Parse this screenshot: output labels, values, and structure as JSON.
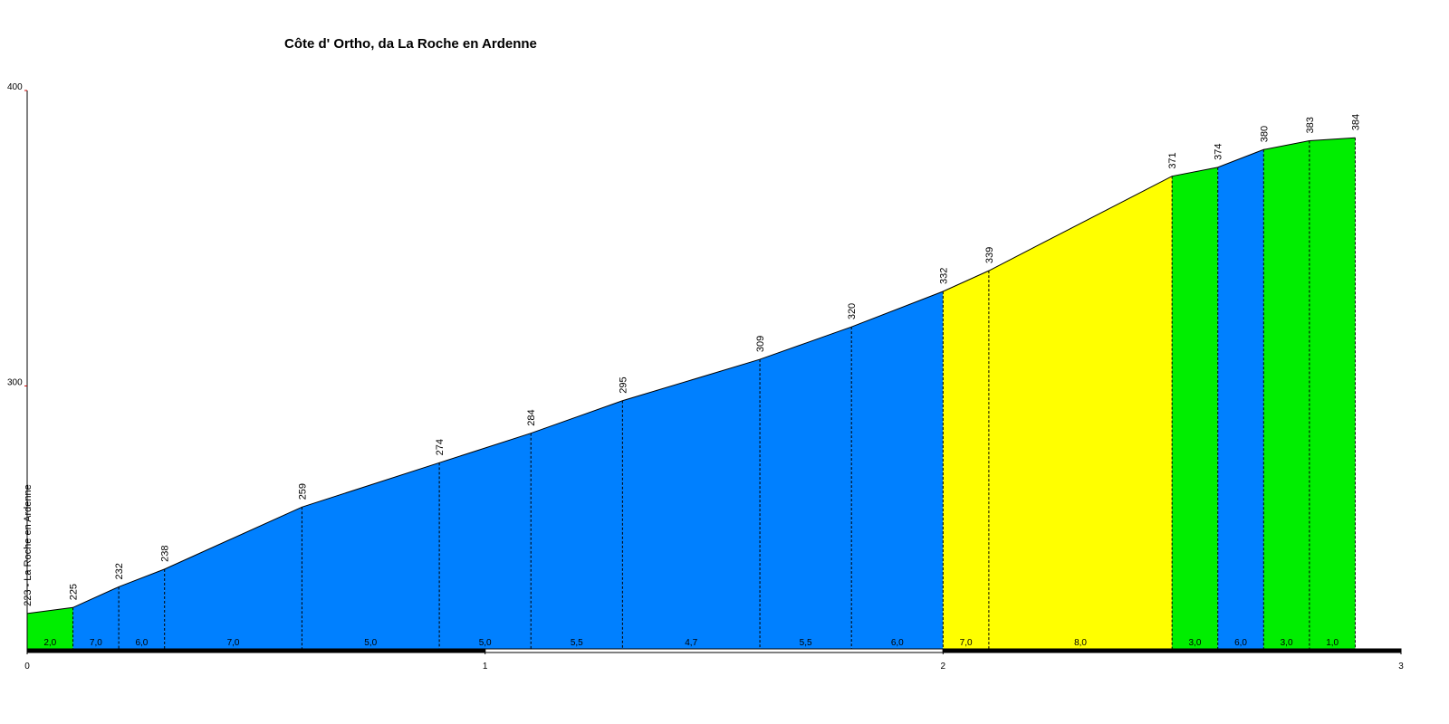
{
  "chart_data": {
    "type": "elevation-profile",
    "title": "Côte d' Ortho, da La Roche en Ardenne",
    "x": [
      0,
      0.1,
      0.2,
      0.3,
      0.6,
      0.9,
      1.1,
      1.3,
      1.6,
      1.8,
      2.0,
      2.1,
      2.5,
      2.6,
      2.7,
      2.8,
      2.9
    ],
    "series": [
      {
        "values": [
          223,
          225,
          232,
          238,
          259,
          274,
          284,
          295,
          309,
          320,
          332,
          339,
          371,
          374,
          380,
          383,
          384
        ],
        "value_labels": [
          "223 - La Roche en Ardenne",
          "225",
          "232",
          "238",
          "259",
          "274",
          "284",
          "295",
          "309",
          "320",
          "332",
          "339",
          "371",
          "374",
          "380",
          "383",
          "384"
        ]
      }
    ],
    "segment_labels": [
      "2,0",
      "7,0",
      "6,0",
      "7,0",
      "5,0",
      "5,0",
      "5,5",
      "4,7",
      "5,5",
      "6,0",
      "7,0",
      "8,0",
      "3,0",
      "6,0",
      "3,0",
      "1,0"
    ],
    "segment_colors": [
      "#00ee00",
      "#0080ff",
      "#0080ff",
      "#0080ff",
      "#0080ff",
      "#0080ff",
      "#0080ff",
      "#0080ff",
      "#0080ff",
      "#0080ff",
      "#ffff00",
      "#ffff00",
      "#00ee00",
      "#0080ff",
      "#00ee00",
      "#00ee00"
    ],
    "xlim": [
      0,
      3
    ],
    "xticks": [
      0,
      1,
      2,
      3
    ],
    "ylim": [
      211,
      400
    ],
    "yticks": [
      300,
      400
    ]
  }
}
